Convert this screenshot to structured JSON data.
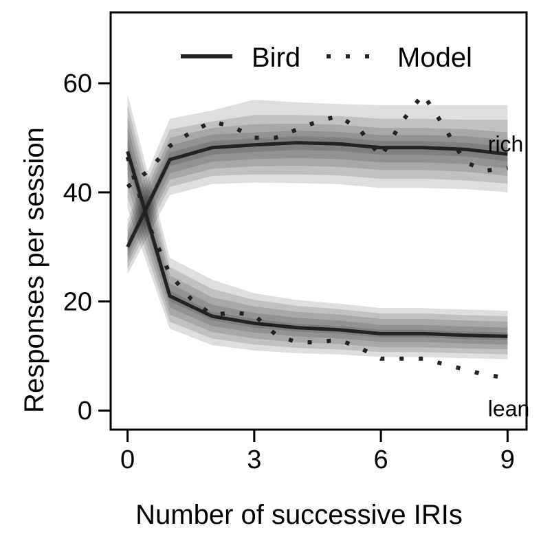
{
  "chart_data": {
    "type": "line",
    "title": "",
    "xlabel": "Number of successive IRIs",
    "ylabel": "Responses per session",
    "xlim": [
      -0.4,
      9.45
    ],
    "ylim": [
      -3.5,
      73
    ],
    "xticks": [
      0,
      3,
      6,
      9
    ],
    "yticks": [
      0,
      20,
      40,
      60
    ],
    "grid": false,
    "legend": {
      "placement": "top-right",
      "entries": [
        {
          "label": "Bird",
          "style": "solid"
        },
        {
          "label": "Model",
          "style": "dotted"
        }
      ]
    },
    "annotations": [
      {
        "text": "rich",
        "x": 8.6,
        "y": 49
      },
      {
        "text": "lean",
        "x": 8.6,
        "y": 0.5
      }
    ],
    "colors": {
      "line": "#222222",
      "band": "#000000"
    },
    "series": [
      {
        "name": "Bird",
        "condition": "rich",
        "style": "solid",
        "x": [
          0,
          1,
          2,
          3,
          4,
          5,
          6,
          7,
          8,
          9
        ],
        "values": [
          30,
          46,
          48.2,
          48.7,
          49.1,
          48.9,
          48.2,
          48.2,
          47.9,
          47
        ],
        "bands": [
          {
            "lower": [
              25,
              39.5,
              41.5,
              41.8,
              41.7,
              41.5,
              40.8,
              40.8,
              40.6,
              40
            ],
            "upper": [
              35,
              53.5,
              55,
              57,
              56.5,
              56.2,
              56,
              56,
              56,
              56
            ]
          },
          {
            "lower": [
              26,
              41,
              43,
              43.3,
              43.3,
              43.1,
              42.5,
              42.5,
              42.2,
              41.6
            ],
            "upper": [
              34,
              51.5,
              53,
              54.2,
              54.2,
              54,
              53.5,
              53.5,
              53.3,
              53.3
            ]
          },
          {
            "lower": [
              27,
              42.3,
              44.3,
              44.8,
              44.9,
              44.7,
              44.1,
              44.1,
              43.8,
              43
            ],
            "upper": [
              33,
              50,
              51.8,
              52.5,
              52.6,
              52.4,
              51.8,
              51.8,
              51.6,
              51
            ]
          },
          {
            "lower": [
              28,
              43.5,
              45.6,
              46.1,
              46.3,
              46.1,
              45.5,
              45.5,
              45.2,
              44.4
            ],
            "upper": [
              32,
              48.6,
              50.6,
              51,
              51.3,
              51.1,
              50.5,
              50.5,
              50.3,
              49.6
            ]
          },
          {
            "lower": [
              29,
              44.8,
              46.9,
              47.4,
              47.8,
              47.6,
              46.9,
              46.9,
              46.6,
              45.7
            ],
            "upper": [
              31,
              47.3,
              49.4,
              49.9,
              50.3,
              50.1,
              49.4,
              49.4,
              49.1,
              48.3
            ]
          }
        ]
      },
      {
        "name": "Bird",
        "condition": "lean",
        "style": "solid",
        "x": [
          0,
          1,
          2,
          3,
          4,
          5,
          6,
          7,
          8,
          9
        ],
        "values": [
          47.5,
          21,
          17.3,
          16,
          15.2,
          14.8,
          14.1,
          14.1,
          13.8,
          13.6
        ],
        "bands": [
          {
            "lower": [
              37,
              15,
              12,
              11,
              10.5,
              10.3,
              9.8,
              9.8,
              9.6,
              9.4
            ],
            "upper": [
              58,
              28,
              24,
              21.5,
              20.3,
              19.6,
              18.8,
              18.8,
              18.5,
              18.3
            ]
          },
          {
            "lower": [
              39,
              16.3,
              13.2,
              12.1,
              11.5,
              11.2,
              10.7,
              10.7,
              10.5,
              10.3
            ],
            "upper": [
              56,
              26.3,
              22.3,
              20.3,
              19.2,
              18.6,
              17.8,
              17.8,
              17.5,
              17.3
            ]
          },
          {
            "lower": [
              41,
              17.6,
              14.4,
              13.2,
              12.5,
              12.2,
              11.6,
              11.6,
              11.4,
              11.2
            ],
            "upper": [
              54,
              24.8,
              20.8,
              19.1,
              18.1,
              17.6,
              16.8,
              16.8,
              16.5,
              16.3
            ]
          },
          {
            "lower": [
              43,
              18.9,
              15.5,
              14.3,
              13.6,
              13.2,
              12.6,
              12.6,
              12.3,
              12.1
            ],
            "upper": [
              52,
              23.3,
              19.4,
              17.9,
              17,
              16.5,
              15.7,
              15.7,
              15.4,
              15.2
            ]
          },
          {
            "lower": [
              45,
              20,
              16.5,
              15.2,
              14.5,
              14.1,
              13.4,
              13.4,
              13.1,
              12.9
            ],
            "upper": [
              50,
              22,
              18.1,
              16.8,
              15.9,
              15.5,
              14.8,
              14.8,
              14.5,
              14.3
            ]
          }
        ]
      },
      {
        "name": "Model",
        "condition": "rich",
        "style": "dotted",
        "x": [
          0,
          0.5,
          1,
          1.5,
          2,
          2.5,
          3,
          3.5,
          4,
          4.5,
          5,
          5.5,
          6,
          6.5,
          7,
          7.5,
          8,
          8.5,
          9
        ],
        "values": [
          41,
          44,
          48.5,
          51,
          53,
          52,
          50,
          50,
          51.5,
          53,
          54,
          51.5,
          46.5,
          53,
          58,
          52,
          45.5,
          44,
          44.5
        ]
      },
      {
        "name": "Model",
        "condition": "lean",
        "style": "dotted",
        "x": [
          0,
          0.5,
          1,
          1.5,
          2,
          2.5,
          3,
          3.5,
          4,
          4.5,
          5,
          5.5,
          6,
          6.5,
          7,
          7.5,
          8,
          8.5,
          9
        ],
        "values": [
          46.5,
          34,
          25,
          20.5,
          17.5,
          18,
          17.5,
          14,
          12.5,
          12.5,
          13,
          11.5,
          9.5,
          9.5,
          9.5,
          8.5,
          7.5,
          6.5,
          6
        ]
      }
    ]
  }
}
